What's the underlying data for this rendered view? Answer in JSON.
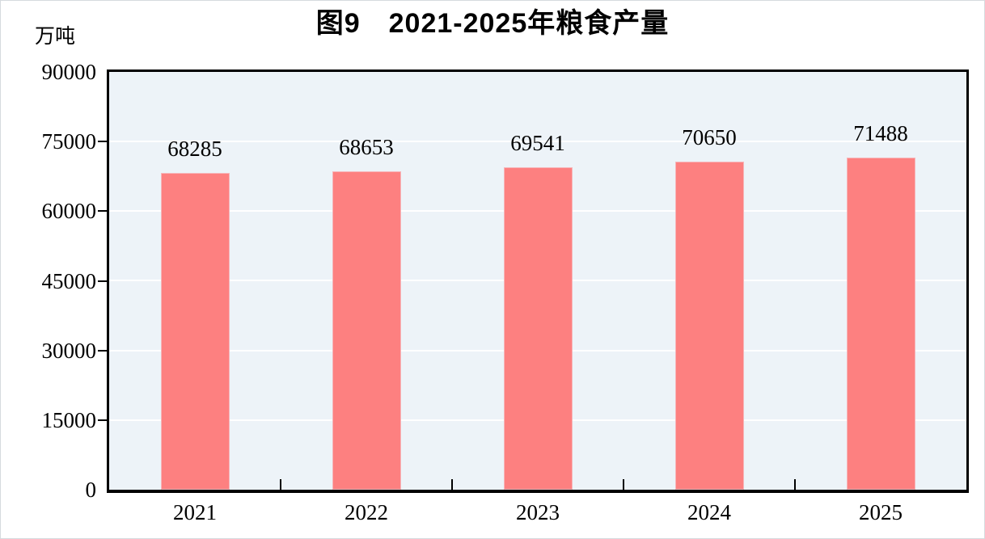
{
  "figure": {
    "title": "图9　2021-2025年粮食产量",
    "unit_label": "万吨"
  },
  "chart_data": {
    "type": "bar",
    "title": "图9　2021-2025年粮食产量",
    "ylabel": "万吨",
    "xlabel": "",
    "categories": [
      "2021",
      "2022",
      "2023",
      "2024",
      "2025"
    ],
    "values": [
      68285,
      68653,
      69541,
      70650,
      71488
    ],
    "value_labels": [
      "68285",
      "68653",
      "69541",
      "70650",
      "71488"
    ],
    "ylim": [
      0,
      90000
    ],
    "yticks": [
      0,
      15000,
      30000,
      45000,
      60000,
      75000,
      90000
    ],
    "grid": true,
    "legend_position": "none",
    "colors": {
      "bar_fill": "#FD8080",
      "bar_edge": "#F6B6BA",
      "plot_background": "#EDF3F8",
      "gridline": "#FFFFFF",
      "axis_frame": "#000000",
      "text": "#000000"
    }
  }
}
